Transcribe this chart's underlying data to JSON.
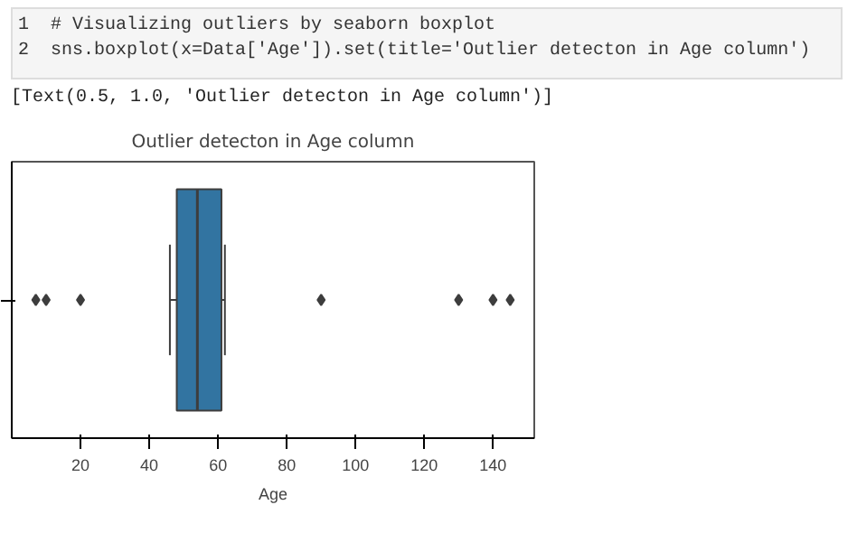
{
  "chart_data": {
    "type": "box",
    "orientation": "horizontal",
    "title": "Outlier detecton in Age column",
    "xlabel": "Age",
    "categories": [
      null
    ],
    "boxes": [
      {
        "low": 46,
        "q1": 48,
        "median": 54,
        "q3": 61,
        "high": 62,
        "outliers": [
          7,
          10,
          20,
          90,
          130,
          140,
          145
        ]
      }
    ],
    "color": "#3274a1",
    "xlim": [
      0,
      152
    ],
    "xticks": [
      20,
      40,
      60,
      80,
      100,
      120,
      140
    ],
    "grid": false,
    "annotations": [
      "1  # Visualizing outliers by seaborn boxplot",
      "2  sns.boxplot(x=Data['Age']).set(title='Outlier detecton in Age column')",
      "[Text(0.5, 1.0, 'Outlier detecton in Age column')]"
    ]
  }
}
